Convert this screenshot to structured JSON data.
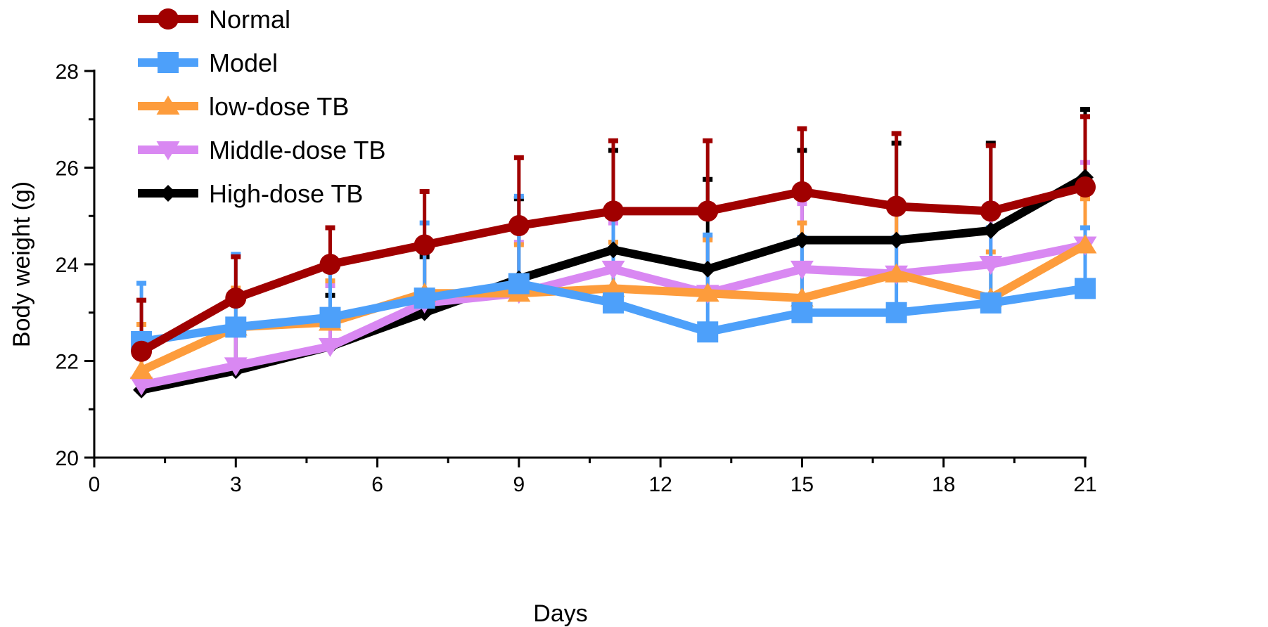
{
  "chart_data": {
    "type": "line",
    "title": "",
    "xlabel": "Days",
    "ylabel": "Body weight (g)",
    "xlim": [
      0,
      21
    ],
    "ylim": [
      20,
      28
    ],
    "xticks": [
      0,
      3,
      6,
      9,
      12,
      15,
      18,
      21
    ],
    "yticks": [
      20,
      22,
      24,
      26,
      28
    ],
    "grid": false,
    "legend_position": "top-left",
    "x": [
      1,
      3,
      5,
      7,
      9,
      11,
      13,
      15,
      17,
      19,
      21
    ],
    "series": [
      {
        "name": "Normal",
        "color": "#a00000",
        "marker": "circle",
        "values": [
          22.2,
          23.3,
          24.0,
          24.4,
          24.8,
          25.1,
          25.1,
          25.5,
          25.2,
          25.1,
          25.6
        ],
        "error": [
          1.1,
          0.9,
          0.8,
          1.15,
          1.45,
          1.5,
          1.5,
          1.35,
          1.55,
          1.4,
          1.5
        ]
      },
      {
        "name": "Model",
        "color": "#4da0fa",
        "marker": "square",
        "values": [
          22.4,
          22.7,
          22.9,
          23.3,
          23.6,
          23.2,
          22.6,
          23.0,
          23.0,
          23.2,
          23.5
        ],
        "error": [
          1.25,
          1.55,
          1.2,
          1.6,
          1.85,
          1.9,
          2.05,
          1.6,
          1.6,
          1.6,
          1.3
        ]
      },
      {
        "name": "low-dose TB",
        "color": "#fd9c3c",
        "marker": "triangle-up",
        "values": [
          21.8,
          22.7,
          22.8,
          23.4,
          23.4,
          23.5,
          23.4,
          23.3,
          23.8,
          23.3,
          24.4
        ],
        "error": [
          1.0,
          0.85,
          0.9,
          1.15,
          1.05,
          1.0,
          1.15,
          1.6,
          1.55,
          1.0,
          1.0
        ]
      },
      {
        "name": "Middle-dose TB",
        "color": "#d988f2",
        "marker": "triangle-down",
        "values": [
          21.5,
          21.9,
          22.3,
          23.2,
          23.4,
          23.9,
          23.4,
          23.9,
          23.8,
          24.0,
          24.4
        ],
        "error": [
          0.8,
          0.9,
          1.3,
          1.2,
          1.1,
          1.0,
          1.2,
          1.4,
          1.3,
          1.3,
          1.75
        ]
      },
      {
        "name": "High-dose TB",
        "color": "#000000",
        "marker": "diamond",
        "values": [
          21.4,
          21.8,
          22.3,
          23.0,
          23.7,
          24.3,
          23.9,
          24.5,
          24.5,
          24.7,
          25.8
        ],
        "error": [
          0.7,
          0.9,
          1.1,
          1.2,
          1.7,
          2.1,
          1.9,
          1.9,
          2.05,
          1.85,
          1.45
        ]
      }
    ]
  }
}
